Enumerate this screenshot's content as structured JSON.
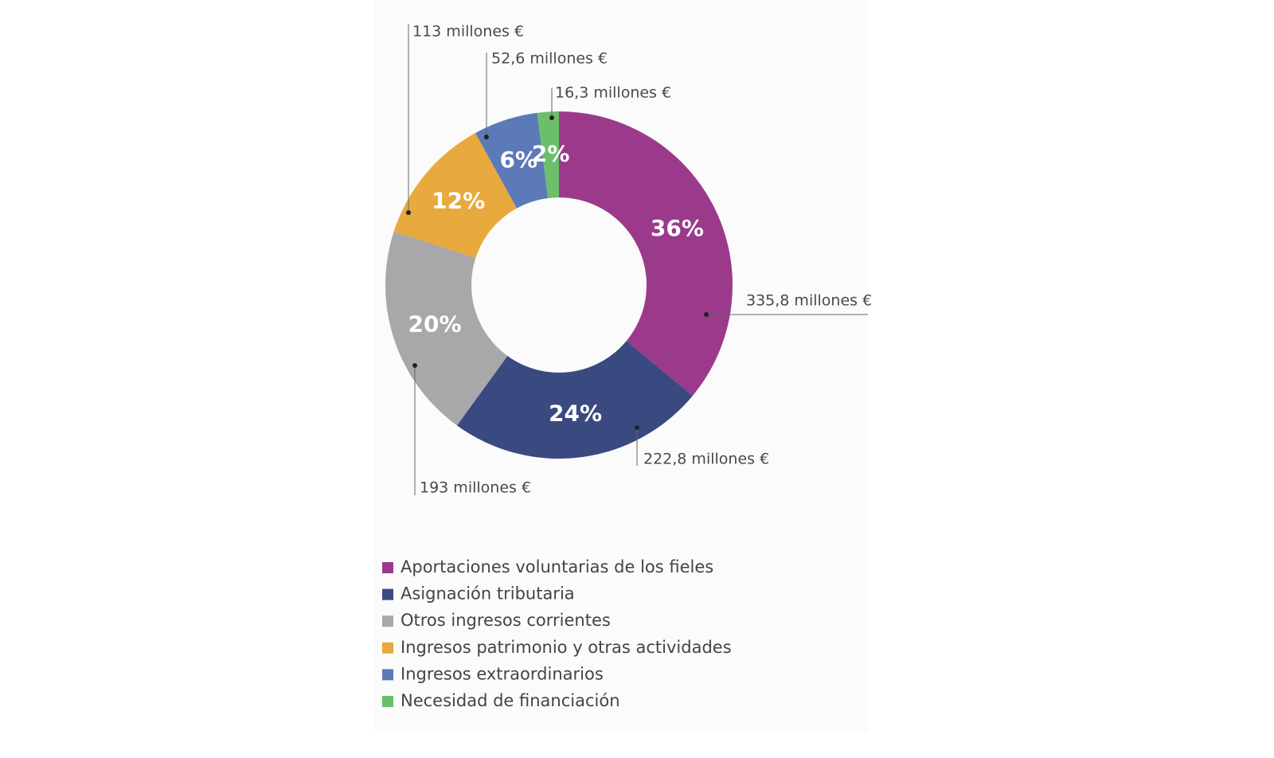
{
  "chart_data": {
    "type": "pie",
    "categories": [
      "Aportaciones voluntarias de los fieles",
      "Asignación tributaria",
      "Otros ingresos corrientes",
      "Ingresos patrimonio y otras actividades",
      "Ingresos extraordinarios",
      "Necesidad de financiación"
    ],
    "values": [
      36,
      24,
      20,
      12,
      6,
      2
    ],
    "value_labels": [
      "36%",
      "24%",
      "20%",
      "12%",
      "6%",
      "2%"
    ],
    "amount_labels": [
      "335,8 millones €",
      "222,8 millones €",
      "193 millones €",
      "113 millones €",
      "52,6 millones €",
      "16,3 millones €"
    ],
    "colors": [
      "#9b3a8b",
      "#3a4a80",
      "#a8a8aa",
      "#e8a93e",
      "#5c79b8",
      "#6bbf6b"
    ],
    "donut": true,
    "legend": "bottom"
  }
}
